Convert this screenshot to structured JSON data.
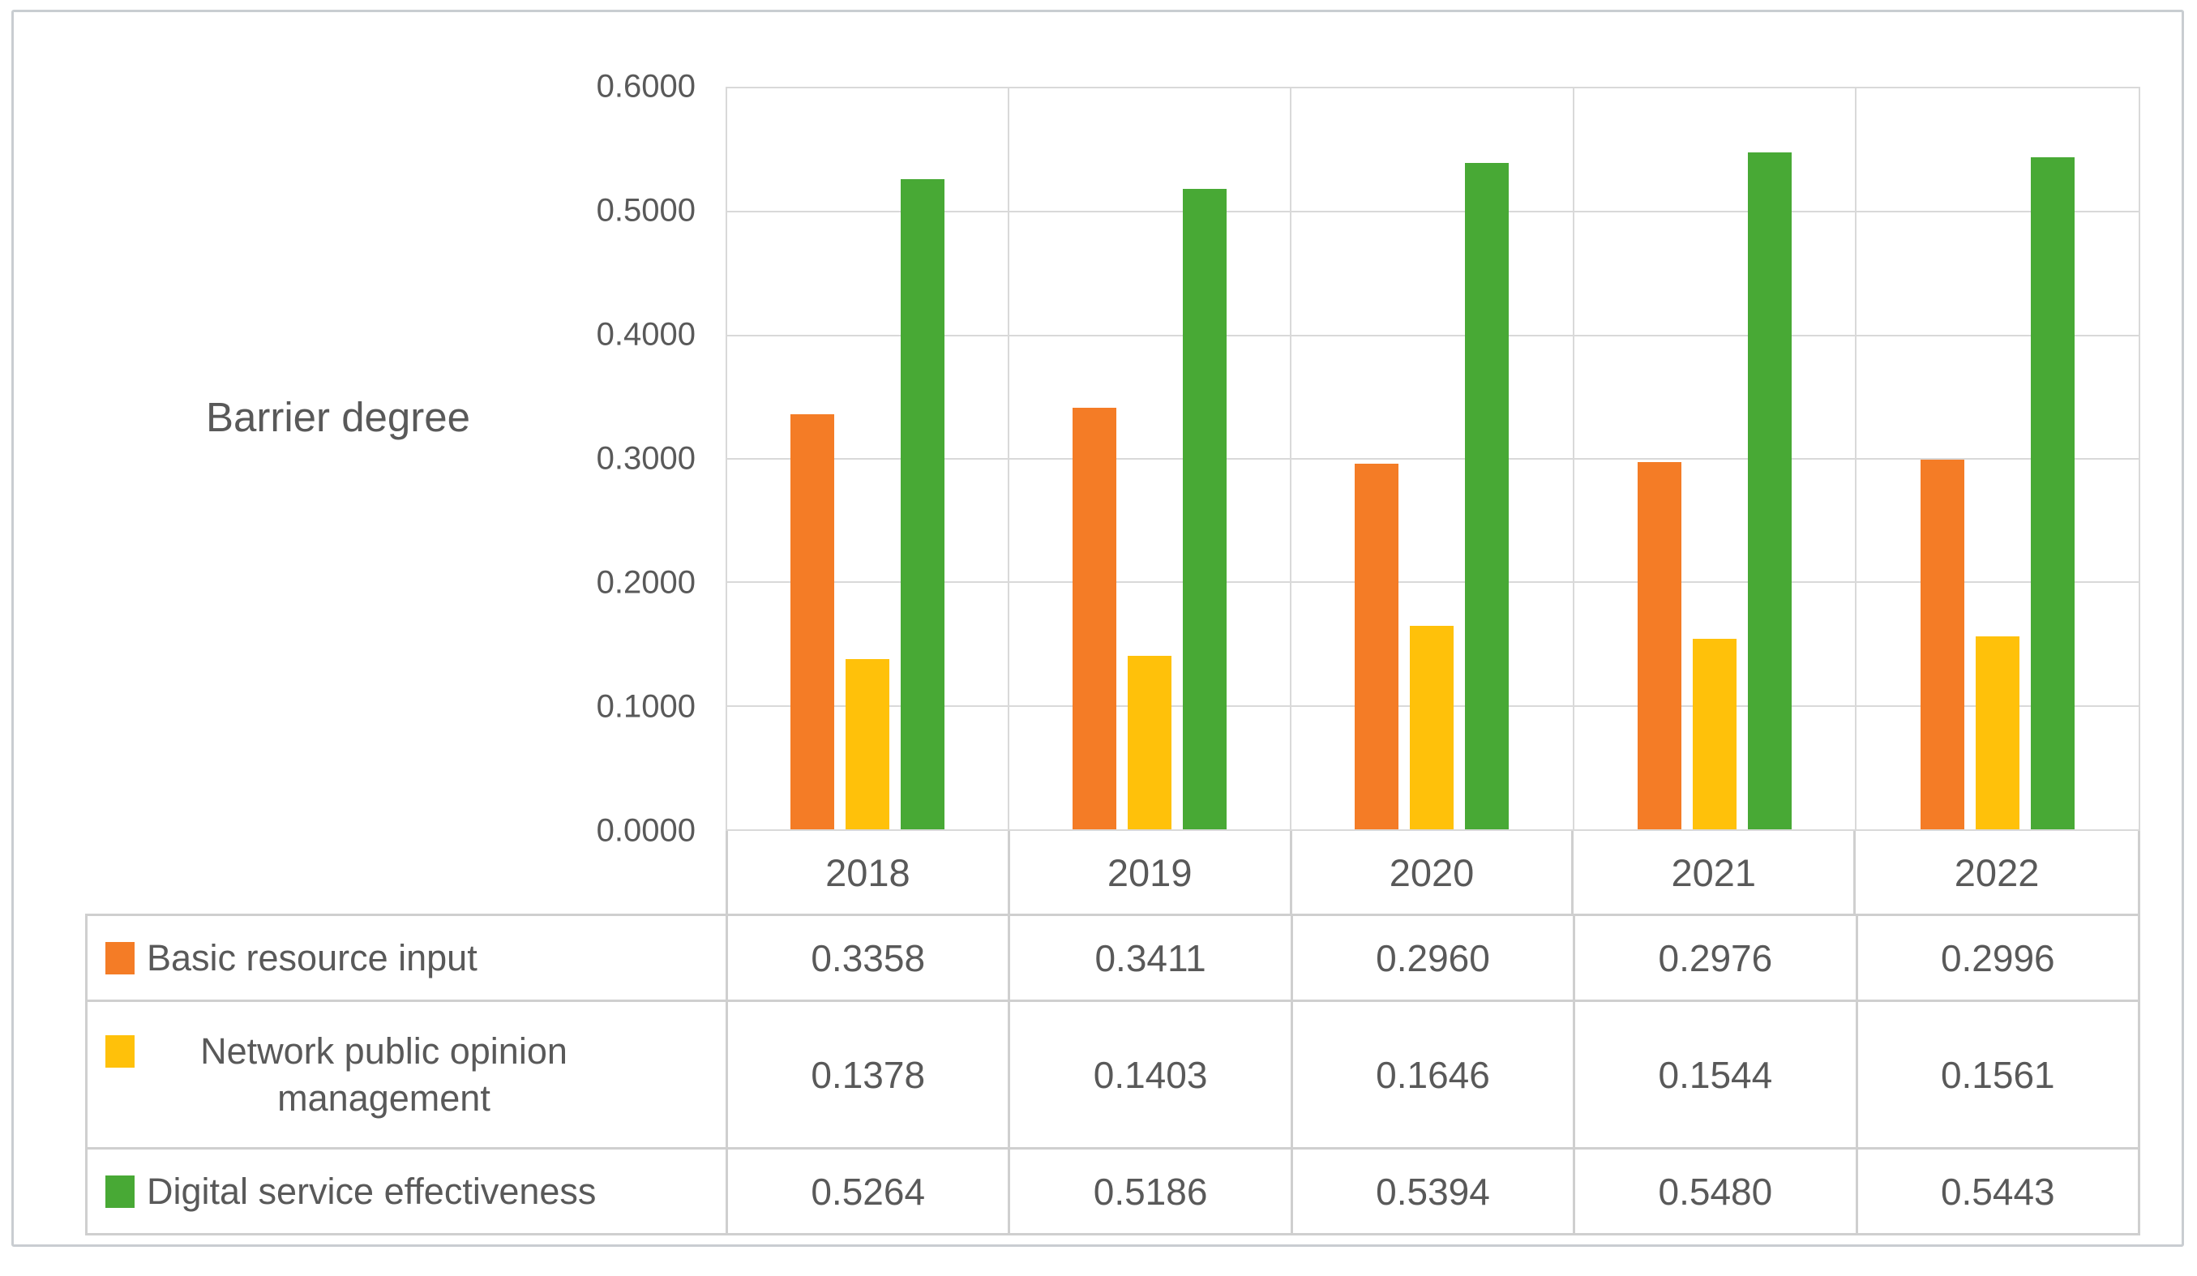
{
  "chart_data": {
    "type": "bar",
    "title": "Barrier degree",
    "categories": [
      "2018",
      "2019",
      "2020",
      "2021",
      "2022"
    ],
    "series": [
      {
        "name": "Basic resource input",
        "color": "#F47C26",
        "values": [
          0.3358,
          0.3411,
          0.296,
          0.2976,
          0.2996
        ]
      },
      {
        "name": "Network public opinion management",
        "color": "#FFC10A",
        "values": [
          0.1378,
          0.1403,
          0.1646,
          0.1544,
          0.1561
        ]
      },
      {
        "name": "Digital service effectiveness",
        "color": "#48A935",
        "values": [
          0.5264,
          0.5186,
          0.5394,
          0.548,
          0.5443
        ]
      }
    ],
    "ylabel": "Barrier degree",
    "ylim": [
      0,
      0.6
    ],
    "ytick_labels": [
      "0.6000",
      "0.5000",
      "0.4000",
      "0.3000",
      "0.2000",
      "0.1000",
      "0.0000"
    ],
    "value_decimals": 4,
    "grid": true,
    "legend_position": "table-left",
    "colors": {
      "grid_line": "#d9d9d9",
      "table_border": "#cfcfcf",
      "text": "#595959"
    }
  }
}
